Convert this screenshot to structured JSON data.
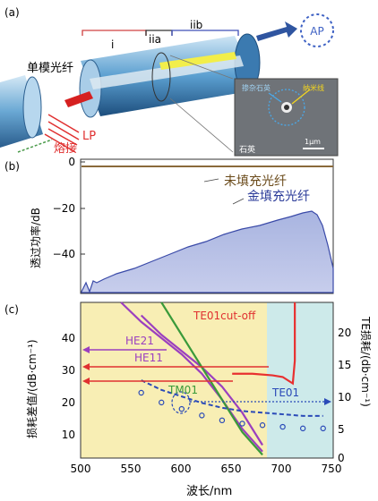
{
  "panel_a": {
    "label": "(a)",
    "section_i": "i",
    "section_iia": "iia",
    "section_iib": "iib",
    "ap_label": "AP",
    "smf_label": "单模光纤",
    "lp_label": "LP",
    "fusion_label": "熔接",
    "inset": {
      "doped_silica": "掺杂石英",
      "nanowire": "纳米线",
      "silica": "石英",
      "scale_bar": "1μm"
    }
  },
  "panel_b": {
    "label": "(b)",
    "ylabel": "透过功率/dB",
    "legend_unfilled": "未填充光纤",
    "legend_gold": "金填充光纤",
    "yticks": [
      "0",
      "−20",
      "−40"
    ]
  },
  "panel_c": {
    "label": "(c)",
    "ylabel_left": "损耗差值/(dB·cm⁻¹)",
    "ylabel_right": "TE损耗/(db·cm⁻¹)",
    "xlabel": "波长/nm",
    "xticks": [
      "500",
      "550",
      "600",
      "650",
      "700",
      "750"
    ],
    "yticks_left": [
      "10",
      "20",
      "30",
      "40"
    ],
    "yticks_right": [
      "0",
      "5",
      "10",
      "15",
      "20"
    ],
    "curve_labels": {
      "te01_cutoff": "TE01cut-off",
      "he21": "HE21",
      "he11": "HE11",
      "tm01": "TM01",
      "te01": "TE01"
    }
  },
  "chart_data": [
    {
      "type": "area",
      "panel": "b",
      "ylabel": "透过功率/dB",
      "ylim": [
        -50,
        2
      ],
      "series": [
        {
          "name": "未填充光纤",
          "color": "#8a6a3a",
          "values": [
            -1,
            -1,
            -1,
            -1,
            -1,
            -1,
            -1,
            -1,
            -1
          ]
        },
        {
          "name": "金填充光纤",
          "color": "#3a4aa8",
          "x": [
            0,
            0.05,
            0.1,
            0.2,
            0.3,
            0.4,
            0.5,
            0.6,
            0.7,
            0.8,
            0.85,
            0.9,
            0.93,
            0.96,
            1.0
          ],
          "values": [
            -48,
            -45,
            -44,
            -42,
            -38,
            -34,
            -31,
            -29,
            -27,
            -25,
            -23,
            -21,
            -20,
            -30,
            -45
          ]
        }
      ]
    },
    {
      "type": "line",
      "panel": "c",
      "xlabel": "波长/nm",
      "ylabel": "损耗差值/(dB·cm⁻¹)",
      "xlim": [
        500,
        750
      ],
      "ylim_left": [
        0,
        48
      ],
      "ylim_right": [
        0,
        24
      ],
      "series": [
        {
          "name": "HE21",
          "color": "#9b3fbf",
          "x": [
            540,
            560,
            580,
            600,
            620,
            640,
            660,
            680
          ],
          "values": [
            48,
            42,
            37,
            32,
            26,
            18,
            9,
            2
          ]
        },
        {
          "name": "HE11",
          "color": "#9b3fbf",
          "x": [
            560,
            580,
            600,
            620,
            640,
            660,
            680
          ],
          "values": [
            44,
            38,
            33,
            28,
            22,
            14,
            4
          ]
        },
        {
          "name": "TM01",
          "color": "#3a9a3a",
          "x": [
            580,
            600,
            620,
            640,
            660,
            680
          ],
          "values": [
            48,
            38,
            28,
            18,
            8,
            1
          ]
        },
        {
          "name": "TE01cut-off",
          "color": "#e83030",
          "x": [
            650,
            670,
            690,
            700,
            710,
            712,
            712
          ],
          "values": [
            26,
            26,
            25.5,
            25,
            23,
            30,
            48
          ]
        },
        {
          "name": "TE01",
          "color": "#2a4ab8",
          "x": [
            560,
            580,
            600,
            620,
            640,
            660,
            680,
            700,
            720,
            740
          ],
          "values": [
            24,
            21,
            19,
            17,
            15.5,
            14.5,
            14,
            13.5,
            13,
            13
          ]
        }
      ]
    }
  ]
}
